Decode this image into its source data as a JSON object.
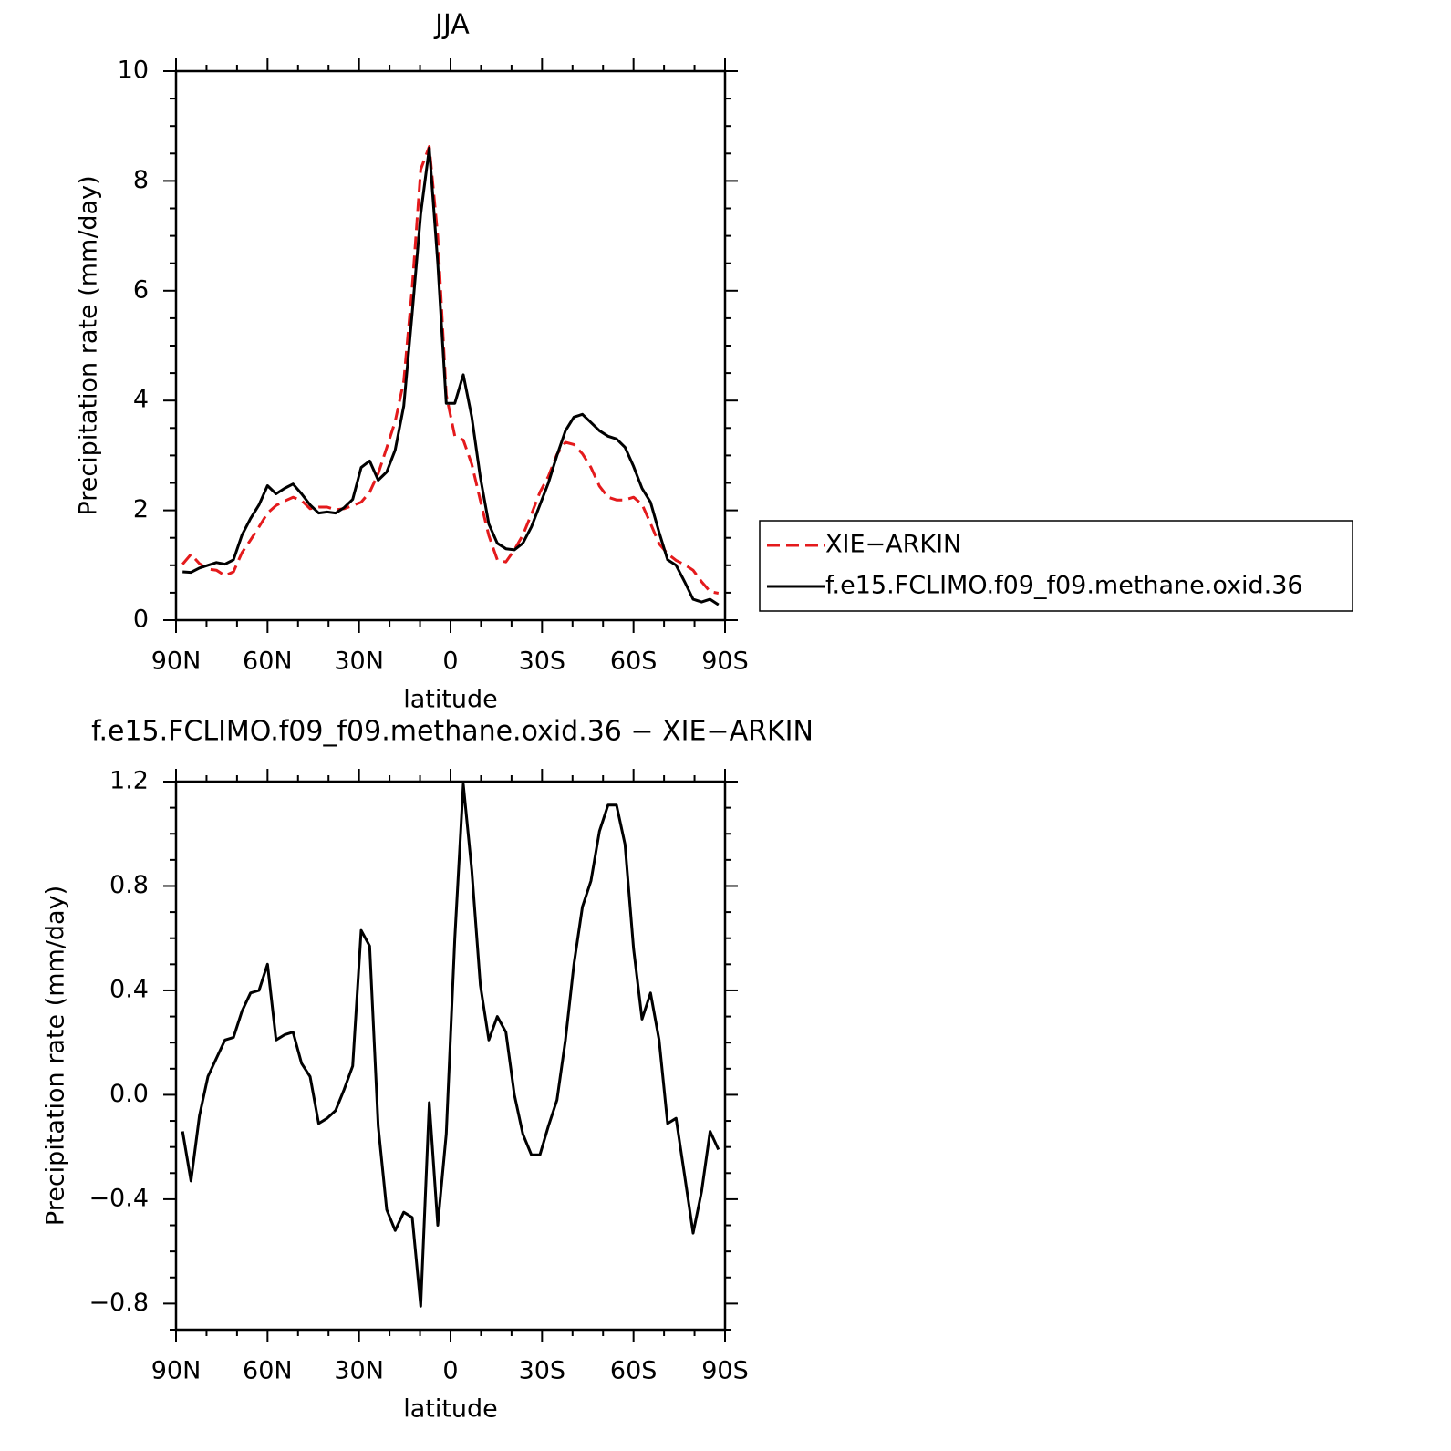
{
  "chart_data": [
    {
      "type": "line",
      "title": "JJA",
      "xlabel": "latitude",
      "ylabel": "Precipitation rate (mm/day)",
      "x": [
        87.86,
        85.1,
        82.31,
        79.53,
        76.74,
        73.95,
        71.16,
        68.37,
        65.58,
        62.79,
        60.0,
        57.21,
        54.42,
        51.63,
        48.84,
        46.04,
        43.25,
        40.46,
        37.67,
        34.88,
        32.09,
        29.3,
        26.51,
        23.72,
        20.93,
        18.14,
        15.35,
        12.56,
        9.77,
        6.98,
        4.19,
        1.4,
        -1.4,
        -4.19,
        -6.98,
        -9.77,
        -12.56,
        -15.35,
        -18.14,
        -20.93,
        -23.72,
        -26.51,
        -29.3,
        -32.09,
        -34.88,
        -37.67,
        -40.46,
        -43.25,
        -46.04,
        -48.84,
        -51.63,
        -54.42,
        -57.21,
        -60.0,
        -62.79,
        -65.58,
        -68.37,
        -71.16,
        -73.95,
        -76.74,
        -79.53,
        -82.31,
        -85.1,
        -87.86
      ],
      "series": [
        {
          "name": "XIE−ARKIN",
          "color": "#e41a1c",
          "dash": true,
          "values": [
            1.02,
            1.2,
            1.03,
            0.93,
            0.91,
            0.81,
            0.88,
            1.23,
            1.46,
            1.7,
            1.95,
            2.09,
            2.17,
            2.24,
            2.18,
            2.03,
            2.06,
            2.06,
            2.01,
            2.03,
            2.09,
            2.15,
            2.33,
            2.67,
            3.14,
            3.62,
            4.35,
            6.07,
            8.21,
            8.63,
            7.0,
            4.1,
            3.35,
            3.28,
            2.84,
            2.18,
            1.54,
            1.1,
            1.06,
            1.28,
            1.55,
            1.93,
            2.33,
            2.62,
            3.02,
            3.24,
            3.2,
            3.03,
            2.78,
            2.44,
            2.24,
            2.19,
            2.19,
            2.24,
            2.11,
            1.76,
            1.39,
            1.21,
            1.09,
            1.01,
            0.91,
            0.7,
            0.52,
            0.49
          ]
        },
        {
          "name": "f.e15.FCLIMO.f09_f09.methane.oxid.36",
          "color": "#000000",
          "dash": false,
          "values": [
            0.88,
            0.87,
            0.95,
            1.0,
            1.05,
            1.02,
            1.1,
            1.55,
            1.85,
            2.1,
            2.45,
            2.3,
            2.4,
            2.48,
            2.3,
            2.1,
            1.95,
            1.97,
            1.95,
            2.05,
            2.2,
            2.78,
            2.9,
            2.55,
            2.7,
            3.1,
            3.9,
            5.6,
            7.4,
            8.6,
            6.5,
            3.95,
            3.95,
            4.47,
            3.7,
            2.6,
            1.75,
            1.4,
            1.3,
            1.28,
            1.4,
            1.7,
            2.1,
            2.5,
            3.0,
            3.45,
            3.7,
            3.75,
            3.6,
            3.45,
            3.35,
            3.3,
            3.15,
            2.8,
            2.4,
            2.15,
            1.6,
            1.1,
            1.0,
            0.7,
            0.38,
            0.33,
            0.38,
            0.28
          ]
        }
      ],
      "xlim": [
        90,
        -90
      ],
      "xticks": [
        {
          "value": 90,
          "label": "90N"
        },
        {
          "value": 60,
          "label": "60N"
        },
        {
          "value": 30,
          "label": "30N"
        },
        0,
        {
          "value": -30,
          "label": "30S"
        },
        {
          "value": -60,
          "label": "60S"
        },
        {
          "value": -90,
          "label": "90S"
        }
      ],
      "xminorticks": [
        80,
        70,
        50,
        40,
        20,
        10,
        -10,
        -20,
        -40,
        -50,
        -70,
        -80
      ],
      "ylim": [
        0,
        10
      ],
      "yticks": [
        0,
        2,
        4,
        6,
        8,
        10
      ],
      "yminorticks": [
        0.5,
        1,
        1.5,
        2.5,
        3,
        3.5,
        4.5,
        5,
        5.5,
        6.5,
        7,
        7.5,
        8.5,
        9,
        9.5
      ],
      "legend": "right"
    },
    {
      "type": "line",
      "title": "f.e15.FCLIMO.f09_f09.methane.oxid.36 − XIE−ARKIN",
      "xlabel": "latitude",
      "ylabel": "Precipitation rate (mm/day)",
      "x": [
        87.86,
        85.1,
        82.31,
        79.53,
        76.74,
        73.95,
        71.16,
        68.37,
        65.58,
        62.79,
        60.0,
        57.21,
        54.42,
        51.63,
        48.84,
        46.04,
        43.25,
        40.46,
        37.67,
        34.88,
        32.09,
        29.3,
        26.51,
        23.72,
        20.93,
        18.14,
        15.35,
        12.56,
        9.77,
        6.98,
        4.19,
        1.4,
        -1.4,
        -4.19,
        -6.98,
        -9.77,
        -12.56,
        -15.35,
        -18.14,
        -20.93,
        -23.72,
        -26.51,
        -29.3,
        -32.09,
        -34.88,
        -37.67,
        -40.46,
        -43.25,
        -46.04,
        -48.84,
        -51.63,
        -54.42,
        -57.21,
        -60.0,
        -62.79,
        -65.58,
        -68.37,
        -71.16,
        -73.95,
        -76.74,
        -79.53,
        -82.31,
        -85.1,
        -87.86
      ],
      "values": [
        -0.14,
        -0.33,
        -0.08,
        0.07,
        0.14,
        0.21,
        0.22,
        0.32,
        0.39,
        0.4,
        0.5,
        0.21,
        0.23,
        0.24,
        0.12,
        0.07,
        -0.11,
        -0.09,
        -0.06,
        0.02,
        0.11,
        0.63,
        0.57,
        -0.12,
        -0.44,
        -0.52,
        -0.45,
        -0.47,
        -0.81,
        -0.03,
        -0.5,
        -0.15,
        0.6,
        1.19,
        0.86,
        0.42,
        0.21,
        0.3,
        0.24,
        0.0,
        -0.15,
        -0.23,
        -0.23,
        -0.12,
        -0.02,
        0.21,
        0.5,
        0.72,
        0.82,
        1.01,
        1.11,
        1.11,
        0.96,
        0.56,
        0.29,
        0.39,
        0.21,
        -0.11,
        -0.09,
        -0.31,
        -0.53,
        -0.37,
        -0.14,
        -0.21
      ],
      "color": "#000000",
      "xlim": [
        90,
        -90
      ],
      "xticks": [
        {
          "value": 90,
          "label": "90N"
        },
        {
          "value": 60,
          "label": "60N"
        },
        {
          "value": 30,
          "label": "30N"
        },
        0,
        {
          "value": -30,
          "label": "30S"
        },
        {
          "value": -60,
          "label": "60S"
        },
        {
          "value": -90,
          "label": "90S"
        }
      ],
      "xminorticks": [
        80,
        70,
        50,
        40,
        20,
        10,
        -10,
        -20,
        -40,
        -50,
        -70,
        -80
      ],
      "ylim": [
        -0.9,
        1.2
      ],
      "yticks": [
        {
          "value": -0.8,
          "label": "−0.8"
        },
        {
          "value": -0.4,
          "label": "−0.4"
        },
        {
          "value": 0,
          "label": "0.0"
        },
        0.4,
        0.8,
        1.2
      ],
      "yminorticks": [
        -0.9,
        -0.7,
        -0.6,
        -0.5,
        -0.3,
        -0.2,
        -0.1,
        0.1,
        0.2,
        0.3,
        0.5,
        0.6,
        0.7,
        0.9,
        1.0,
        1.1
      ]
    }
  ]
}
